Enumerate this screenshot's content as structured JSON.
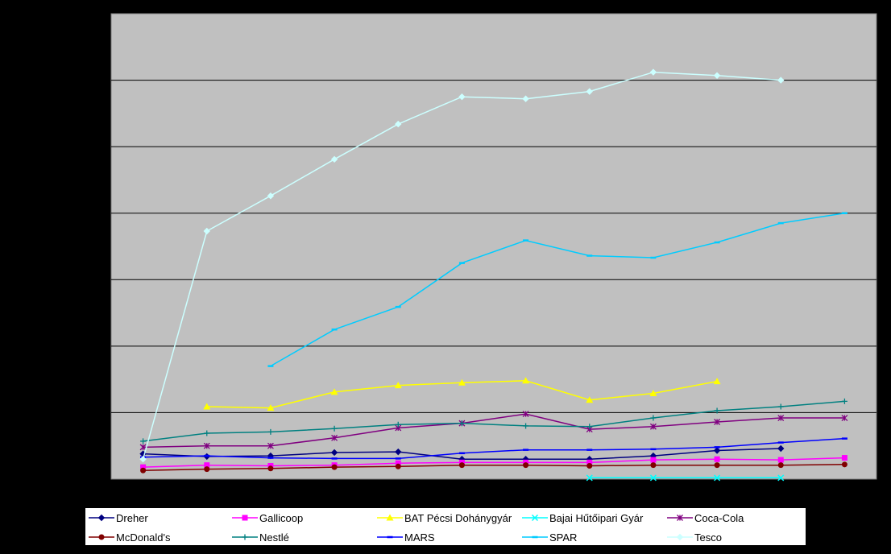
{
  "chart_data": {
    "type": "line",
    "title": "",
    "xlabel": "",
    "ylabel": "",
    "ylim": [
      0,
      7
    ],
    "grid": true,
    "legend_position": "bottom",
    "background_color": "#c0c0c0",
    "x": [
      1,
      2,
      3,
      4,
      5,
      6,
      7,
      8,
      9,
      10,
      11,
      12
    ],
    "series": [
      {
        "name": "Dreher",
        "color": "#000080",
        "marker": "diamond",
        "values": [
          0.38,
          0.34,
          0.35,
          0.4,
          0.41,
          0.3,
          0.3,
          0.3,
          0.35,
          0.43,
          0.46,
          null
        ]
      },
      {
        "name": "Gallicoop",
        "color": "#ff00ff",
        "marker": "square",
        "values": [
          0.18,
          0.21,
          0.2,
          0.21,
          0.24,
          0.25,
          0.25,
          0.25,
          0.29,
          0.3,
          0.29,
          0.32
        ]
      },
      {
        "name": "BAT Pécsi Dohánygyár",
        "color": "#ffff00",
        "marker": "triangle",
        "values": [
          null,
          1.09,
          1.07,
          1.31,
          1.41,
          1.45,
          1.48,
          1.19,
          1.29,
          1.47,
          null,
          null
        ]
      },
      {
        "name": "Bajai Hűtőipari Gyár",
        "color": "#00ffff",
        "marker": "x",
        "values": [
          null,
          null,
          null,
          null,
          null,
          null,
          null,
          0.02,
          0.02,
          0.02,
          0.02,
          null
        ]
      },
      {
        "name": "Coca-Cola",
        "color": "#800080",
        "marker": "asterisk",
        "values": [
          0.48,
          0.5,
          0.5,
          0.62,
          0.77,
          0.84,
          0.98,
          0.75,
          0.79,
          0.86,
          0.92,
          0.92
        ]
      },
      {
        "name": "McDonald's",
        "color": "#800000",
        "marker": "circle",
        "values": [
          0.13,
          0.15,
          0.16,
          0.18,
          0.19,
          0.21,
          0.21,
          0.2,
          0.21,
          0.21,
          0.21,
          0.22
        ]
      },
      {
        "name": "Nestlé",
        "color": "#008080",
        "marker": "plus",
        "values": [
          0.57,
          0.69,
          0.71,
          0.76,
          0.82,
          0.84,
          0.8,
          0.79,
          0.92,
          1.03,
          1.09,
          1.17
        ]
      },
      {
        "name": "MARS",
        "color": "#0000ff",
        "marker": "dash",
        "values": [
          0.33,
          0.35,
          0.32,
          0.31,
          0.31,
          0.39,
          0.44,
          0.44,
          0.45,
          0.48,
          0.55,
          0.61
        ]
      },
      {
        "name": "SPAR",
        "color": "#00ccff",
        "marker": "dash",
        "values": [
          null,
          null,
          1.7,
          2.25,
          2.59,
          3.25,
          3.59,
          3.36,
          3.33,
          3.56,
          3.85,
          4.0
        ]
      },
      {
        "name": "Tesco",
        "color": "#ccffff",
        "marker": "diamond",
        "values": [
          0.3,
          3.73,
          4.26,
          4.81,
          5.34,
          5.75,
          5.72,
          5.83,
          6.12,
          6.07,
          6.0,
          null
        ]
      }
    ]
  }
}
